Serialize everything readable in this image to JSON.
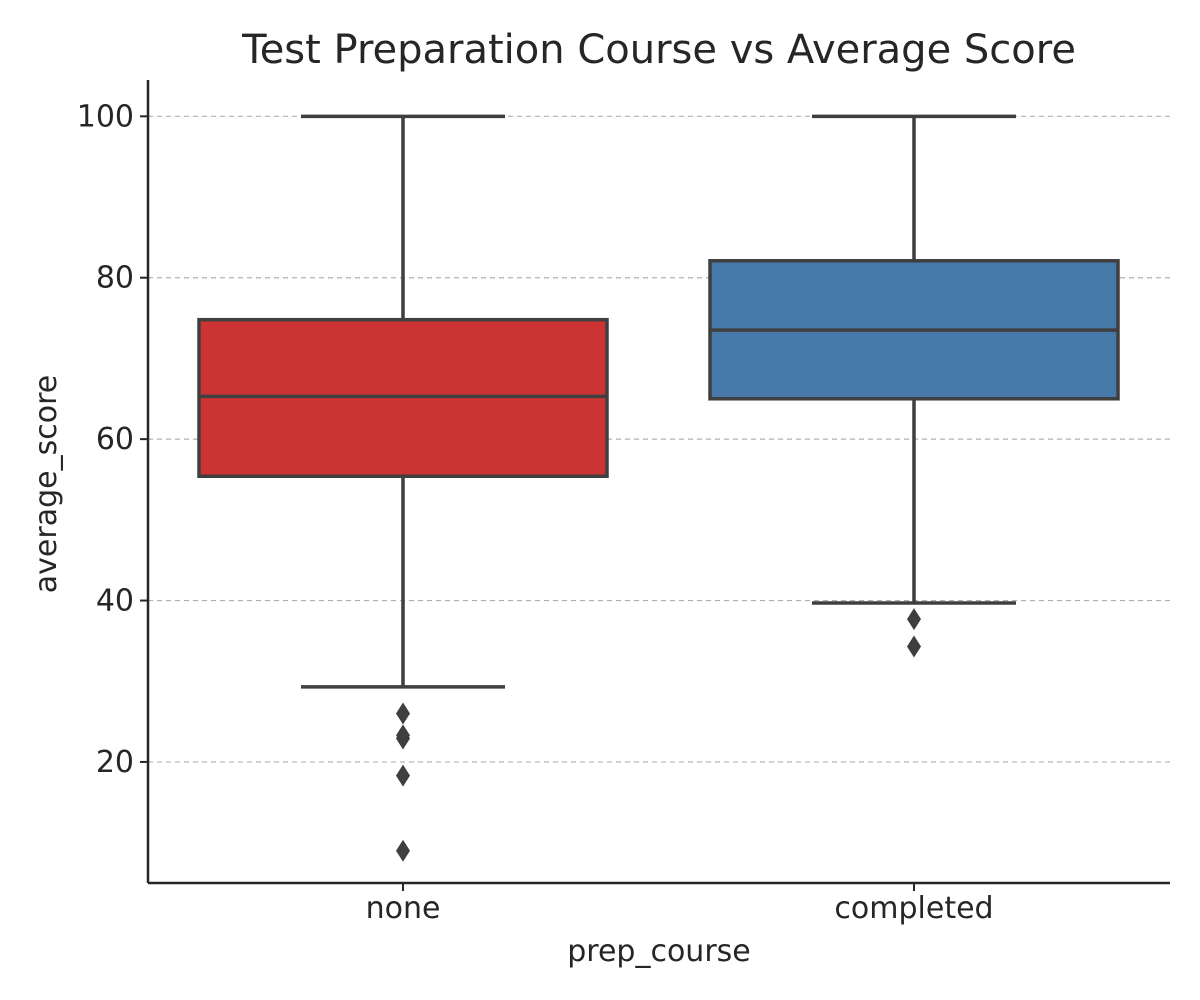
{
  "chart_data": {
    "type": "box",
    "title": "Test Preparation Course vs Average Score",
    "xlabel": "prep_course",
    "ylabel": "average_score",
    "ylim": [
      5,
      104.5
    ],
    "yticks": [
      "20",
      "40",
      "60",
      "80",
      "100"
    ],
    "grid": "y-dashed",
    "categories": [
      "none",
      "completed"
    ],
    "boxes": [
      {
        "category": "none",
        "color": "#CC3333",
        "whisker_low": 29.3,
        "q1": 55.4,
        "median": 65.3,
        "q3": 74.8,
        "whisker_high": 100,
        "outliers": [
          26.0,
          23.3,
          22.9,
          18.3,
          9.0
        ]
      },
      {
        "category": "completed",
        "color": "#4679A9",
        "whisker_low": 39.7,
        "q1": 65.0,
        "median": 73.5,
        "q3": 82.1,
        "whisker_high": 100,
        "outliers": [
          37.7,
          34.3
        ]
      }
    ]
  }
}
